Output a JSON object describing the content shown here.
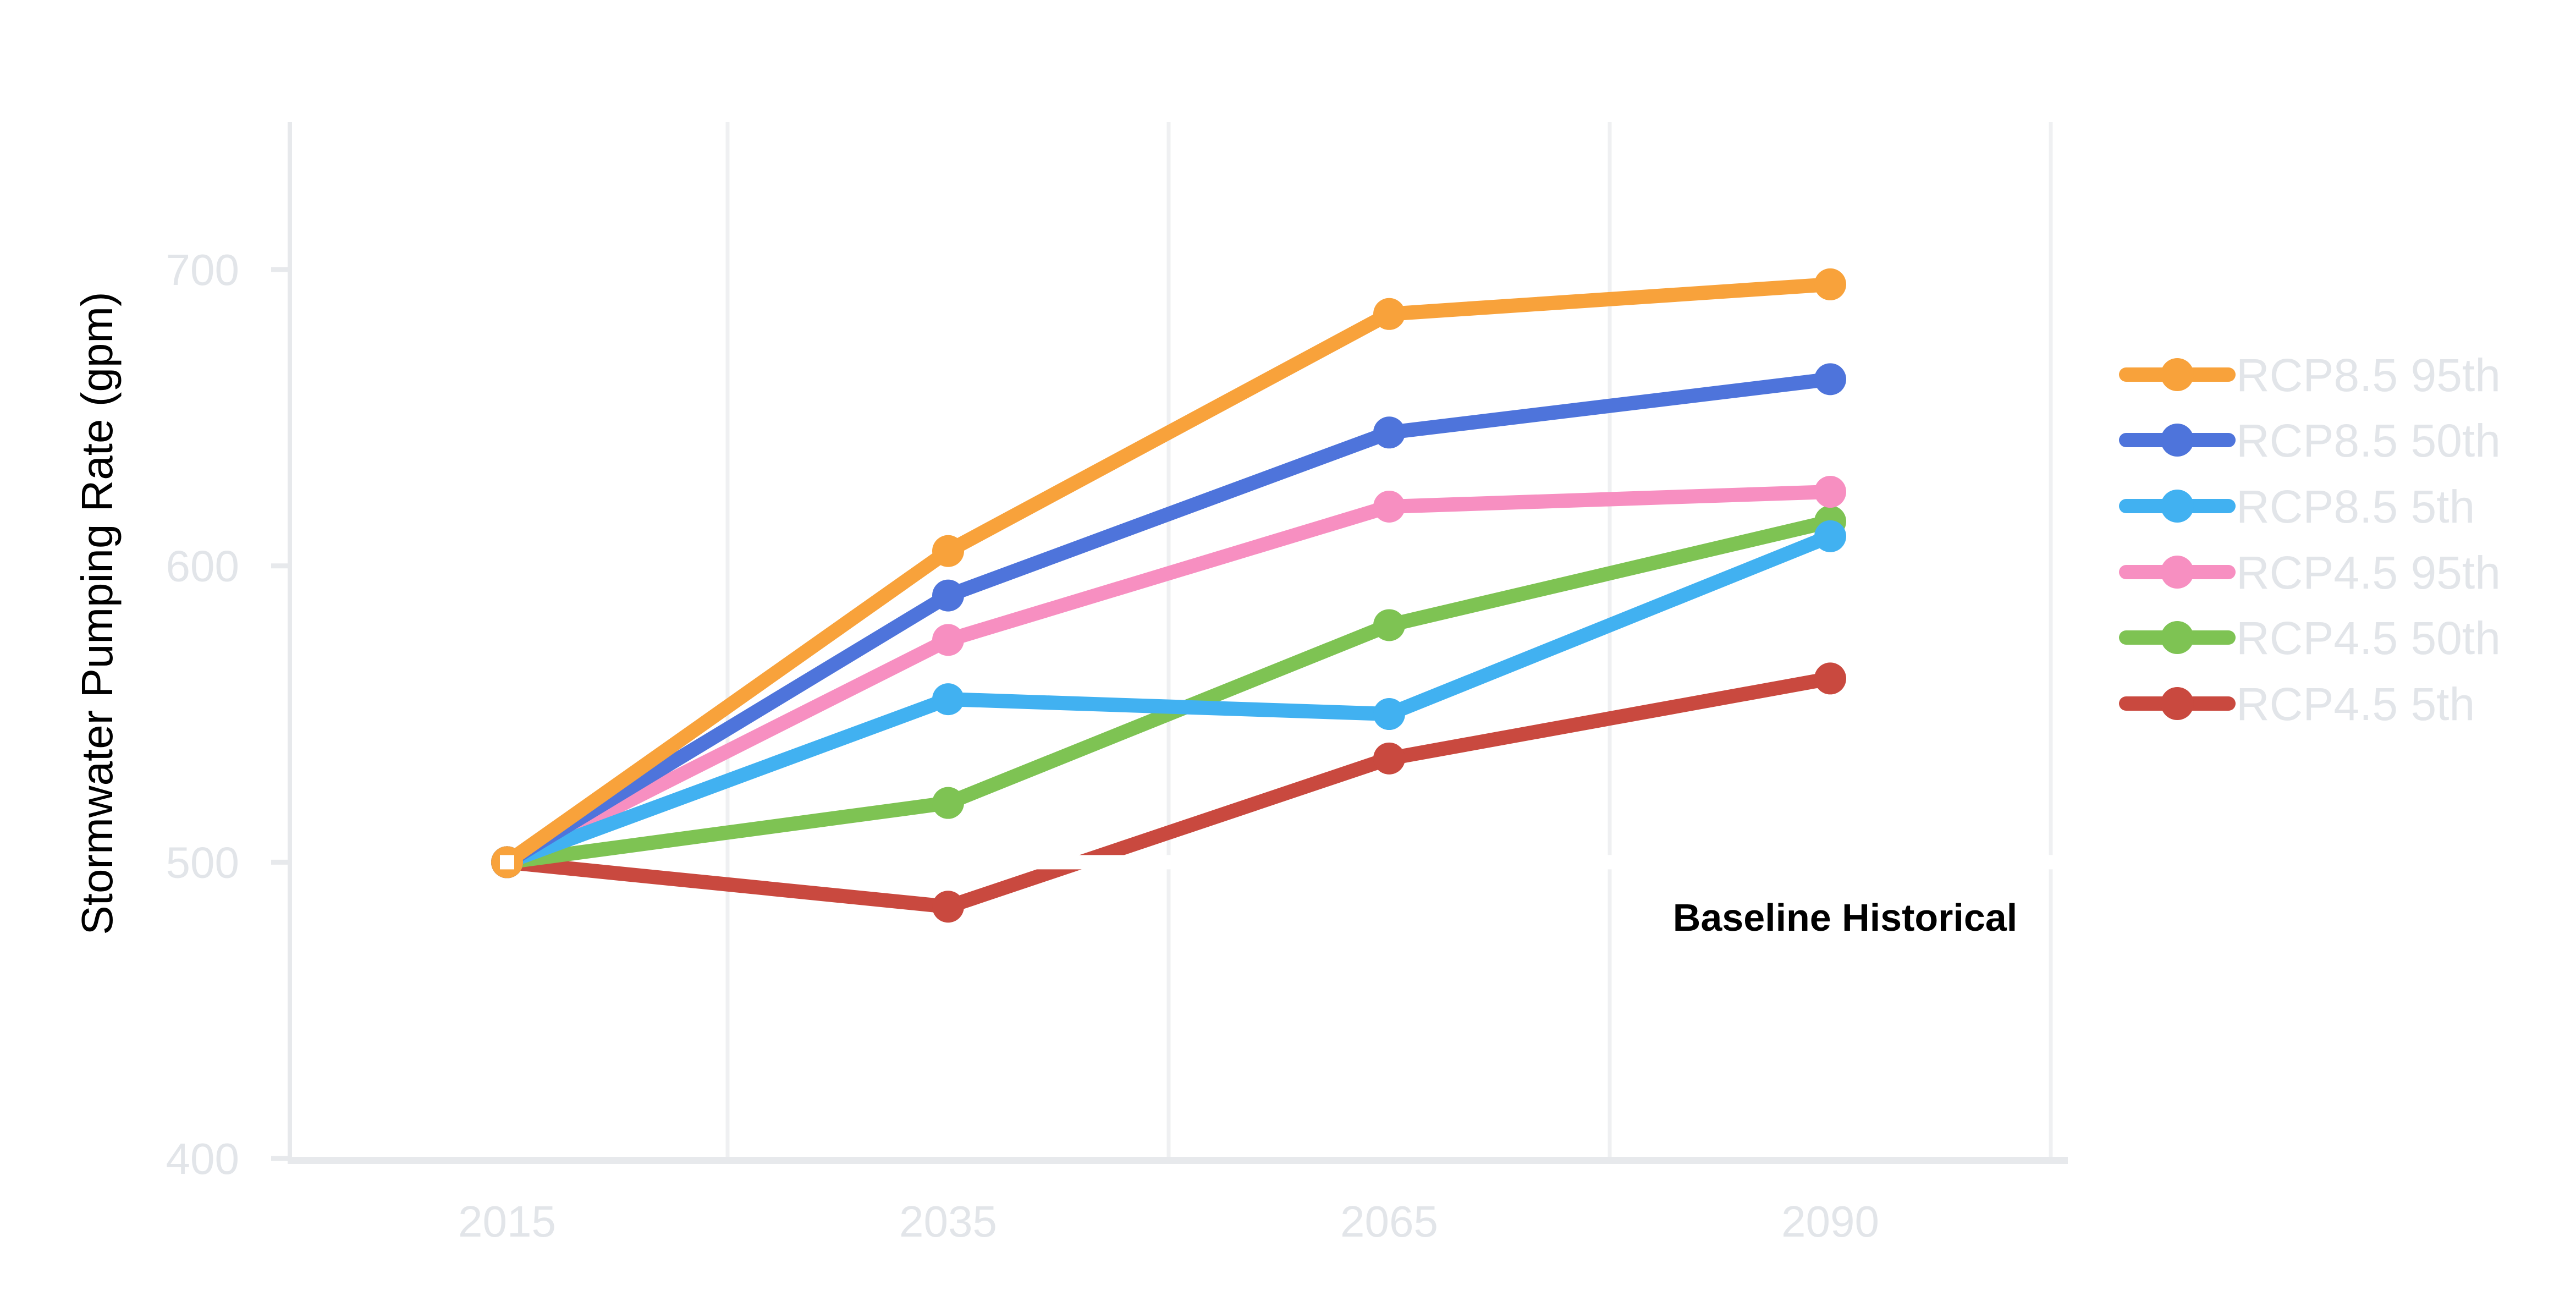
{
  "palette": {
    "background": "#FFFFFF",
    "axis_line": "#E7E9EC",
    "gridline": "#EFF0F2",
    "tick_text": "#E2E5E9",
    "legend_text": "#E2E5E9",
    "annotation_text": "#DCE0E5"
  },
  "chart_data": {
    "type": "line",
    "title": "",
    "xlabel": "",
    "ylabel": "Stormwater Pumping Rate (gpm)",
    "categories": [
      "2015",
      "2035",
      "2065",
      "2090"
    ],
    "y_ticks": [
      700,
      600,
      500,
      400
    ],
    "ylim": [
      400,
      750
    ],
    "grid": "vertical-between-categories",
    "legend_position": "right",
    "series": [
      {
        "name": "RCP8.5 95th",
        "color": "#F8A23B",
        "values": [
          500,
          605,
          685,
          695
        ],
        "in_legend": true
      },
      {
        "name": "RCP8.5 50th",
        "color": "#4E74DB",
        "values": [
          500,
          590,
          645,
          663
        ],
        "in_legend": true
      },
      {
        "name": "RCP8.5 5th",
        "color": "#41B1F1",
        "values": [
          500,
          555,
          550,
          610
        ],
        "in_legend": true
      },
      {
        "name": "RCP4.5 95th",
        "color": "#F78FC1",
        "values": [
          500,
          575,
          620,
          625
        ],
        "in_legend": true
      },
      {
        "name": "RCP4.5 50th",
        "color": "#7EC353",
        "values": [
          500,
          520,
          580,
          615
        ],
        "in_legend": true
      },
      {
        "name": "RCP4.5 5th",
        "color": "#C9493F",
        "values": [
          500,
          485,
          535,
          562
        ],
        "in_legend": true
      },
      {
        "name": "Baseline Historical",
        "color": "#FFFFFF",
        "values": [
          500,
          500,
          500,
          500
        ],
        "in_legend": false,
        "baseline": true
      }
    ],
    "annotation": {
      "text": "Baseline Historical",
      "y_value": 500
    }
  }
}
